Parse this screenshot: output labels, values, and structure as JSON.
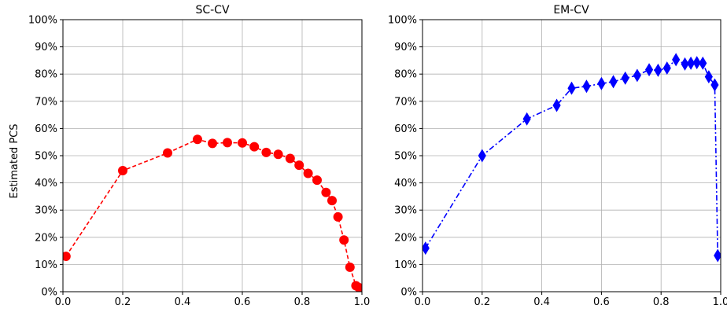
{
  "chart_data": [
    {
      "type": "line",
      "title": "SC-CV",
      "xlabel": "",
      "ylabel": "Estimated PCS",
      "xlim": [
        0.0,
        1.0
      ],
      "ylim": [
        0,
        100
      ],
      "xticks": [
        "0.0",
        "0.2",
        "0.4",
        "0.6",
        "0.8",
        "1.0"
      ],
      "yticks": [
        "0%",
        "10%",
        "20%",
        "30%",
        "40%",
        "50%",
        "60%",
        "70%",
        "80%",
        "90%",
        "100%"
      ],
      "grid": true,
      "series": [
        {
          "color": "#ff0000",
          "marker": "circle",
          "linestyle": "dashed",
          "x": [
            0.01,
            0.2,
            0.35,
            0.45,
            0.5,
            0.55,
            0.6,
            0.64,
            0.68,
            0.72,
            0.76,
            0.79,
            0.82,
            0.85,
            0.88,
            0.9,
            0.92,
            0.94,
            0.96,
            0.98,
            0.99
          ],
          "y": [
            13,
            44.5,
            51,
            56,
            54.5,
            54.8,
            54.7,
            53.3,
            51.2,
            50.5,
            49,
            46.5,
            43.5,
            41,
            36.5,
            33.5,
            27.5,
            19,
            9,
            2.2,
            1.5
          ]
        }
      ]
    },
    {
      "type": "line",
      "title": "EM-CV",
      "xlabel": "",
      "ylabel": "",
      "xlim": [
        0.0,
        1.0
      ],
      "ylim": [
        0,
        100
      ],
      "xticks": [
        "0.0",
        "0.2",
        "0.4",
        "0.6",
        "0.8",
        "1.0"
      ],
      "yticks": [
        "0%",
        "10%",
        "20%",
        "30%",
        "40%",
        "50%",
        "60%",
        "70%",
        "80%",
        "90%",
        "100%"
      ],
      "grid": true,
      "series": [
        {
          "color": "#0000ff",
          "marker": "diamond",
          "linestyle": "dashdot",
          "x": [
            0.01,
            0.2,
            0.35,
            0.45,
            0.5,
            0.55,
            0.6,
            0.64,
            0.68,
            0.72,
            0.76,
            0.79,
            0.82,
            0.85,
            0.88,
            0.9,
            0.92,
            0.94,
            0.96,
            0.98,
            0.99
          ],
          "y": [
            16,
            50,
            63.5,
            68.5,
            74.8,
            75.5,
            76.5,
            77.2,
            78.5,
            79.5,
            81.6,
            81.4,
            82.2,
            85.3,
            83.7,
            84,
            84.2,
            84,
            79,
            76,
            13.3
          ]
        }
      ]
    }
  ]
}
